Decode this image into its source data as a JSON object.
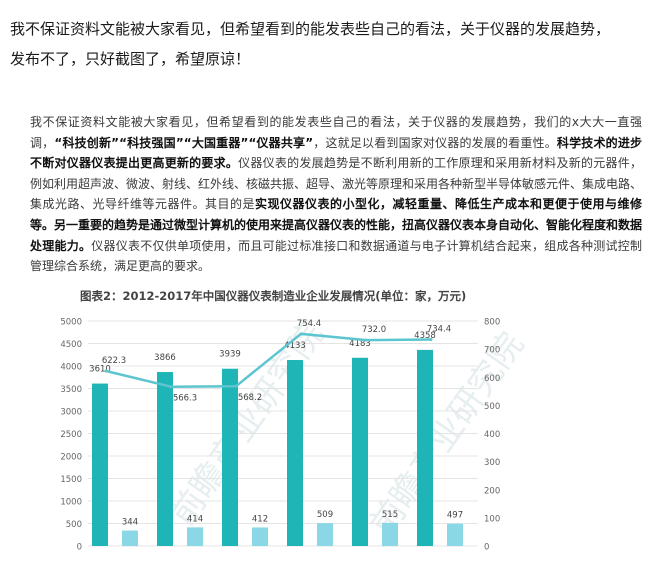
{
  "post": {
    "heading_line1": "我不保证资料文能被大家看见，但希望看到的能发表些自己的看法，关于仪器的发展趋势，",
    "heading_line2": "发布不了，只好截图了，希望原谅！"
  },
  "article": {
    "p1": "我不保证资料文能被大家看见，但希望看到的能发表些自己的看法，关于仪器的发展趋势，我们的x大大一直强调，",
    "q1": "“科技创新”",
    "q2": "“科技强国”",
    "q3": "“大国重器”",
    "q4": "“仪器共享”",
    "p2": "，这就足以看到国家对仪器的发展的看重性。",
    "b1": "科学技术的进步不断对仪器仪表提出更高更新的要求。",
    "p3": "仪器仪表的发展趋势是不断利用新的工作原理和采用新材料及新的元器件，例如利用超声波、微波、射线、红外线、核磁共振、超导、激光等原理和采用各种新型半导体敏感元件、集成电路、集成光路、光导纤维等元器件。其目的是",
    "b2": "实现仪器仪表的小型化，减轻重量、降低生产成本和更便于使用与维修等。另一重要的趋势是通过微型计算机的使用来提高仪器仪表的性能，扭高仪器仪表本身自动化、智能化程度和数据处理能力。",
    "p4": "仪器仪表不仅供单项使用，而且可能过标准接口和数据通道与电子计算机结合起来，组成各种测试控制管理综合系统，满足更高的要求。"
  },
  "chart_data": {
    "type": "bar",
    "title": "图表2：2012-2017年中国仪器仪表制造业企业发展情况(单位：家，万元)",
    "left_axis": {
      "ylim": [
        0,
        5000
      ],
      "ticks": [
        "0",
        "500",
        "1000",
        "1500",
        "2000",
        "2500",
        "3000",
        "3500",
        "4000",
        "4500",
        "5000"
      ]
    },
    "right_axis": {
      "ylim": [
        0,
        800
      ],
      "ticks": [
        "0",
        "100",
        "200",
        "300",
        "400",
        "500",
        "600",
        "700",
        "800"
      ]
    },
    "series": [
      {
        "kind": "bar",
        "axis": "left",
        "values": [
          3610,
          3866,
          3939,
          4133,
          4183,
          4358
        ],
        "labels": [
          "3610",
          "3866",
          "3939",
          "4133",
          "4183",
          "4358"
        ],
        "color": "#1fb5b7"
      },
      {
        "kind": "bar",
        "axis": "left",
        "values": [
          344,
          414,
          412,
          509,
          515,
          497
        ],
        "labels": [
          "344",
          "414",
          "412",
          "509",
          "515",
          "497"
        ],
        "color": "#8ad7e6"
      },
      {
        "kind": "line",
        "axis": "right",
        "values": [
          622.3,
          566.3,
          568.2,
          754.4,
          732.0,
          734.4
        ],
        "labels": [
          "622.3",
          "566.3",
          "568.2",
          "754.4",
          "732.0",
          "734.4"
        ],
        "color": "#5cc5cf"
      }
    ],
    "grid": true,
    "watermark": "前瞻产业研究院"
  }
}
